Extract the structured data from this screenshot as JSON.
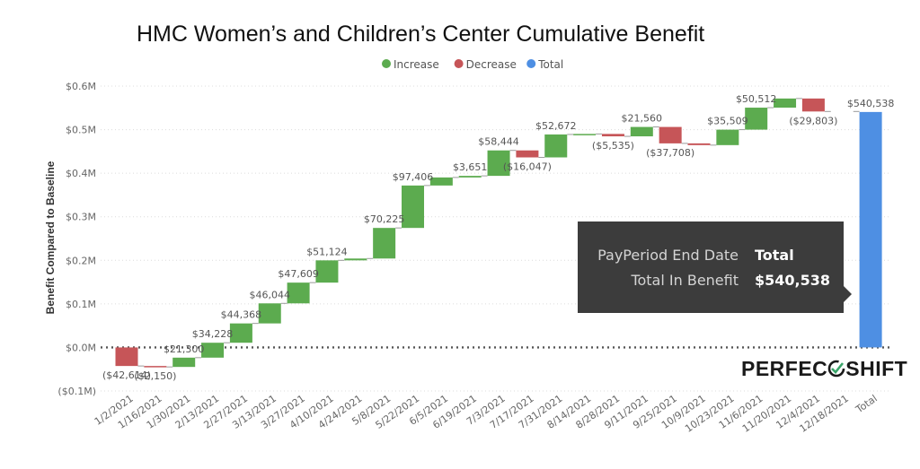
{
  "chart_data": {
    "type": "waterfall",
    "title": "HMC Women’s and Children’s Center Cumulative Benefit",
    "ylabel": "Benefit Compared to Baseline",
    "xlabel": "",
    "ylim": [
      -0.1,
      0.6
    ],
    "y_ticks": [
      "$0.6M",
      "$0.5M",
      "$0.4M",
      "$0.3M",
      "$0.2M",
      "$0.1M",
      "$0.0M",
      "($0.1M)"
    ],
    "grid": true,
    "legend": {
      "position": "top-center",
      "items": [
        {
          "name": "Increase",
          "color": "#5cab4f"
        },
        {
          "name": "Decrease",
          "color": "#c65558"
        },
        {
          "name": "Total",
          "color": "#4e8fe3"
        }
      ]
    },
    "categories": [
      "1/2/2021",
      "1/16/2021",
      "1/30/2021",
      "2/13/2021",
      "2/27/2021",
      "3/13/2021",
      "3/27/2021",
      "4/10/2021",
      "4/24/2021",
      "5/8/2021",
      "5/22/2021",
      "6/5/2021",
      "6/19/2021",
      "7/3/2021",
      "7/17/2021",
      "7/31/2021",
      "8/14/2021",
      "8/28/2021",
      "9/11/2021",
      "9/25/2021",
      "10/9/2021",
      "10/23/2021",
      "11/6/2021",
      "11/20/2021",
      "12/4/2021",
      "12/18/2021",
      "Total"
    ],
    "values": [
      -42614,
      -2150,
      21300,
      34228,
      44368,
      46044,
      47609,
      51124,
      4200,
      70225,
      97406,
      18500,
      3651,
      58444,
      -16047,
      52672,
      1200,
      -5535,
      21560,
      -37708,
      -4000,
      35509,
      50512,
      21000,
      -29803,
      null,
      540538
    ],
    "labels": [
      "($42,614)",
      "($2,150)",
      "$21,300",
      "$34,228",
      "$44,368",
      "$46,044",
      "$47,609",
      "$51,124",
      "",
      "$70,225",
      "$97,406",
      "",
      "$3,651",
      "$58,444",
      "($16,047)",
      "$52,672",
      "",
      "($5,535)",
      "$21,560",
      "($37,708)",
      "",
      "$35,509",
      "$50,512",
      "",
      "($29,803)",
      "",
      "$540,538"
    ]
  },
  "tooltip": {
    "key1": "PayPeriod End Date",
    "val1": "Total",
    "key2": "Total In Benefit",
    "val2": "$540,538"
  },
  "logo": {
    "text_before": "PERFEC",
    "text_after": "SHIFT"
  }
}
